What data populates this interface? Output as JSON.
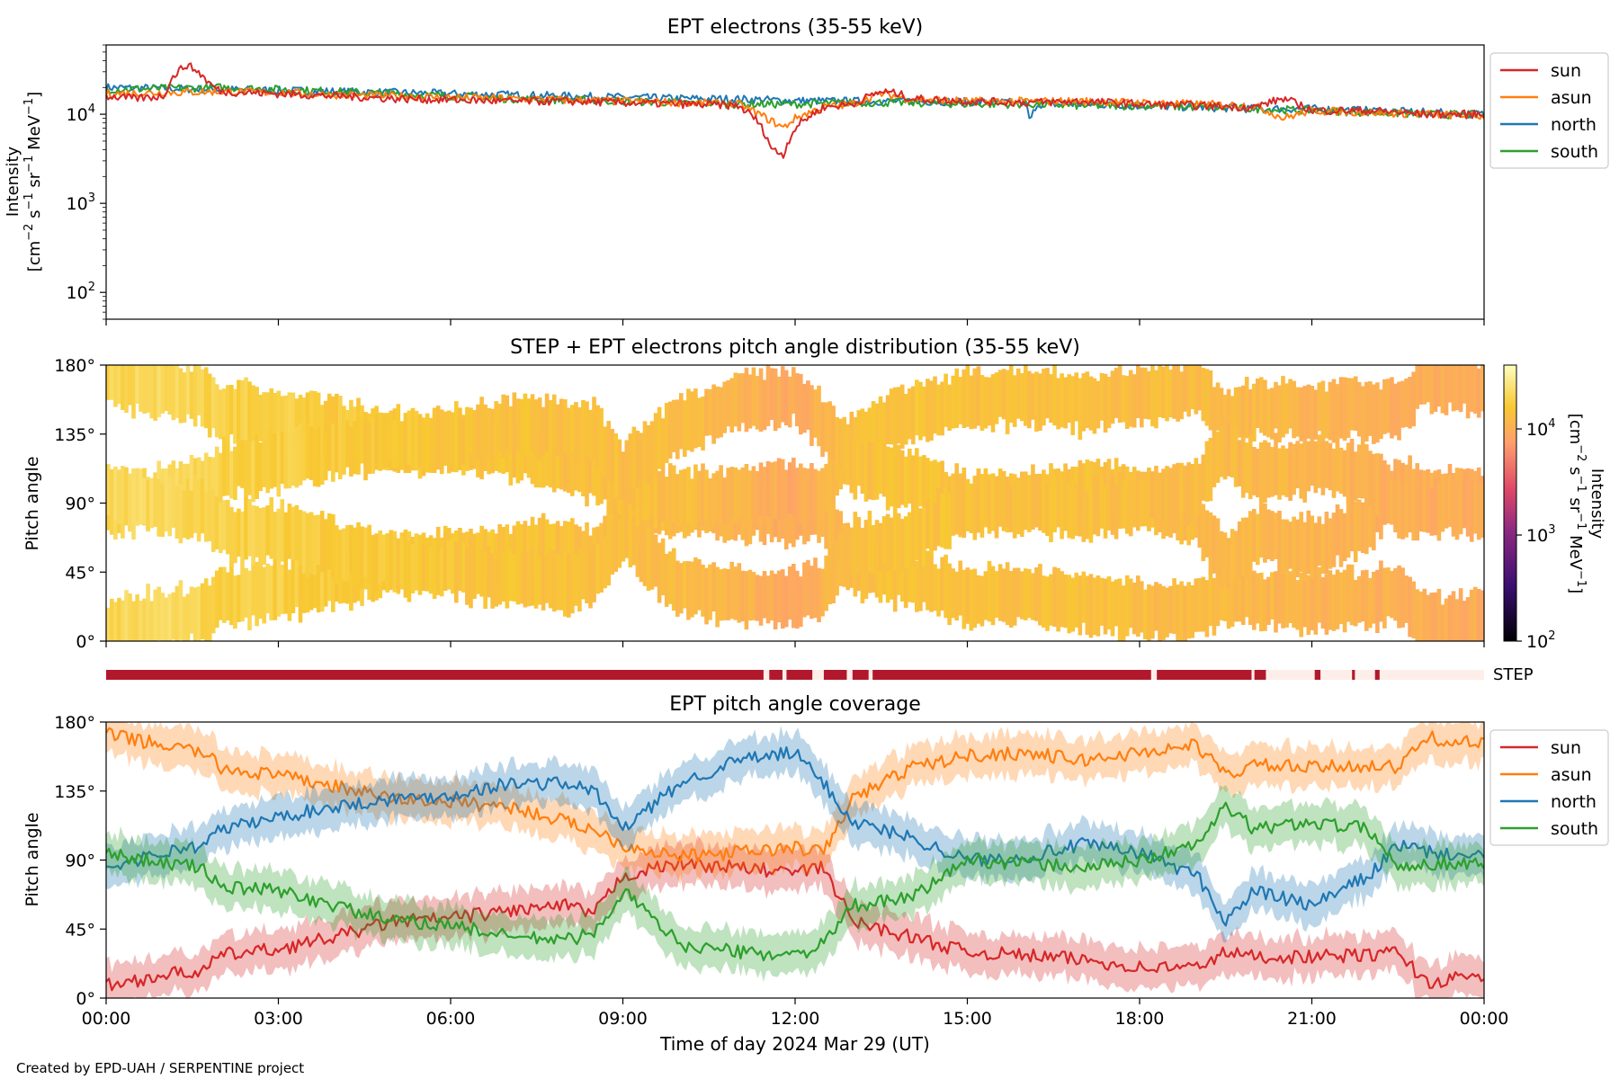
{
  "figure": {
    "credit": "Created by EPD-UAH / SERPENTINE project",
    "xlabel": "Time of day 2024 Mar 29 (UT)",
    "xticks": [
      "00:00",
      "03:00",
      "06:00",
      "09:00",
      "12:00",
      "15:00",
      "18:00",
      "21:00",
      "00:00"
    ]
  },
  "colors": {
    "sun": "#d62728",
    "asun": "#ff7f0e",
    "north": "#1f77b4",
    "south": "#2ca02c",
    "step_bar": "#b2182b",
    "step_gap": "#fdeee9"
  },
  "chart_data": [
    {
      "id": "intensity",
      "type": "line",
      "title": "EPT electrons (35-55 keV)",
      "ylabel": [
        "Intensity",
        "[cm",
        "−2",
        " s",
        "−1",
        " sr",
        "−1",
        " MeV",
        "−1",
        "]"
      ],
      "yscale": "log",
      "ylim": [
        50,
        60000
      ],
      "yticks": [
        {
          "base": "10",
          "exp": "2",
          "value": 100
        },
        {
          "base": "10",
          "exp": "3",
          "value": 1000
        },
        {
          "base": "10",
          "exp": "4",
          "value": 10000
        }
      ],
      "xlim_hours": [
        0,
        24
      ],
      "legend": [
        "sun",
        "asun",
        "north",
        "south"
      ],
      "legend_position": "upper-right-outside",
      "series": [
        {
          "name": "sun",
          "x": [
            0,
            0.5,
            1,
            1.2,
            1.4,
            1.6,
            1.8,
            2,
            3,
            4,
            5,
            6,
            7,
            8,
            9,
            10,
            11,
            11.3,
            11.6,
            11.8,
            12,
            12.2,
            12.5,
            13,
            13.5,
            13.8,
            14,
            15,
            16,
            17,
            18,
            19,
            20,
            20.5,
            21,
            22,
            23,
            24
          ],
          "y": [
            16000,
            15000,
            16000,
            28000,
            36000,
            30000,
            22000,
            18000,
            17000,
            16000,
            15000,
            14500,
            14000,
            14000,
            13500,
            13000,
            12500,
            9000,
            4000,
            3500,
            7000,
            9000,
            12000,
            13000,
            18000,
            17000,
            15000,
            14000,
            13500,
            14000,
            13000,
            12500,
            12000,
            15000,
            11000,
            11000,
            10000,
            10000
          ]
        },
        {
          "name": "asun",
          "x": [
            0,
            1,
            2,
            3,
            4,
            5,
            6,
            7,
            8,
            9,
            10,
            11,
            11.5,
            11.8,
            12,
            12.5,
            13,
            13.5,
            14,
            15,
            16,
            17,
            18,
            19,
            20,
            20.5,
            21,
            22,
            23,
            24
          ],
          "y": [
            17000,
            17500,
            18000,
            17500,
            16500,
            16000,
            15500,
            15000,
            14500,
            14000,
            13500,
            13000,
            9000,
            7000,
            9000,
            12000,
            13000,
            17000,
            15000,
            14000,
            14000,
            14000,
            13500,
            13000,
            12500,
            9000,
            11000,
            10500,
            10000,
            9500
          ]
        },
        {
          "name": "north",
          "x": [
            0,
            1,
            2,
            3,
            4,
            5,
            6,
            7,
            8,
            9,
            10,
            11,
            11.5,
            12,
            13,
            14,
            15,
            16,
            16.1,
            16.2,
            17,
            18,
            19,
            20,
            21,
            22,
            23,
            24
          ],
          "y": [
            20000,
            19500,
            19000,
            18500,
            18000,
            17500,
            17000,
            16500,
            16000,
            15500,
            15000,
            14800,
            14500,
            14200,
            14000,
            14000,
            13800,
            13500,
            8000,
            13000,
            13000,
            12500,
            12000,
            11500,
            11500,
            11000,
            10500,
            10000
          ]
        },
        {
          "name": "south",
          "x": [
            0,
            1,
            2,
            3,
            4,
            5,
            6,
            7,
            8,
            9,
            10,
            11,
            12,
            13,
            14,
            15,
            16,
            17,
            18,
            19,
            20,
            21,
            22,
            23,
            24
          ],
          "y": [
            19000,
            19500,
            20000,
            19000,
            18000,
            17000,
            16000,
            15000,
            14500,
            14000,
            13500,
            13000,
            13000,
            13500,
            13500,
            13000,
            13000,
            12500,
            12500,
            12000,
            11500,
            11000,
            10500,
            10000,
            9800
          ]
        }
      ]
    },
    {
      "id": "pad",
      "type": "heatmap",
      "title": "STEP + EPT electrons pitch angle distribution (35-55 keV)",
      "ylabel": "Pitch angle",
      "ylim": [
        0,
        180
      ],
      "yticks": [
        "0°",
        "45°",
        "90°",
        "135°",
        "180°"
      ],
      "colorbar": {
        "scale": "log",
        "range": [
          100,
          40000
        ],
        "ticks": [
          {
            "base": "10",
            "exp": "2",
            "value": 100
          },
          {
            "base": "10",
            "exp": "3",
            "value": 1000
          },
          {
            "base": "10",
            "exp": "4",
            "value": 10000
          }
        ],
        "label": [
          "Intensity",
          "[cm",
          "−2",
          " s",
          "−1",
          " sr",
          "−1",
          " MeV",
          "−1",
          "]"
        ]
      },
      "intensity_hours": [
        0,
        1,
        2,
        3,
        4,
        5,
        6,
        7,
        8,
        9,
        10,
        11,
        12,
        13,
        14,
        15,
        16,
        17,
        18,
        19,
        20,
        21,
        22,
        23,
        24
      ],
      "intensity_values": [
        20000,
        22000,
        19000,
        18000,
        16500,
        16000,
        15000,
        14500,
        14000,
        13500,
        13000,
        11000,
        9000,
        13000,
        15000,
        14000,
        13500,
        14000,
        13000,
        12500,
        12000,
        11000,
        10500,
        10000,
        9500
      ]
    },
    {
      "id": "step",
      "type": "bar",
      "label": "STEP",
      "gaps_hours": [
        [
          11.45,
          11.55
        ],
        [
          11.78,
          11.85
        ],
        [
          12.3,
          12.5
        ],
        [
          12.9,
          13.0
        ],
        [
          13.28,
          13.35
        ],
        [
          18.2,
          18.3
        ],
        [
          19.95,
          20.0
        ],
        [
          20.2,
          24.0
        ]
      ],
      "marks_hours": [
        [
          21.05,
          21.15
        ],
        [
          21.7,
          21.75
        ],
        [
          22.1,
          22.18
        ]
      ]
    },
    {
      "id": "coverage",
      "type": "line",
      "title": "EPT pitch angle coverage",
      "ylabel": "Pitch angle",
      "ylim": [
        0,
        180
      ],
      "yticks": [
        "0°",
        "45°",
        "90°",
        "135°",
        "180°"
      ],
      "band_halfwidth_deg": 13,
      "legend": [
        "sun",
        "asun",
        "north",
        "south"
      ],
      "legend_position": "upper-right-outside",
      "series": [
        {
          "name": "sun",
          "x": [
            0,
            1,
            1.7,
            2,
            3,
            4,
            5,
            6,
            7,
            8,
            8.5,
            9,
            10,
            11,
            12,
            12.5,
            13,
            14,
            15,
            16,
            17,
            18,
            19,
            19.5,
            20,
            21,
            22,
            22.5,
            23,
            24
          ],
          "y": [
            8,
            15,
            18,
            28,
            32,
            40,
            50,
            52,
            57,
            60,
            55,
            80,
            88,
            85,
            82,
            85,
            50,
            40,
            30,
            28,
            25,
            20,
            20,
            30,
            27,
            27,
            28,
            30,
            10,
            15
          ]
        },
        {
          "name": "asun",
          "x": [
            0,
            1,
            1.7,
            2,
            3,
            4,
            5,
            6,
            7,
            8,
            8.5,
            9,
            10,
            11,
            12,
            12.5,
            13,
            14,
            15,
            16,
            17,
            18,
            19,
            19.5,
            20,
            21,
            22,
            22.5,
            23,
            24
          ],
          "y": [
            172,
            165,
            160,
            150,
            145,
            138,
            130,
            128,
            125,
            115,
            110,
            100,
            92,
            95,
            98,
            95,
            130,
            150,
            158,
            160,
            155,
            160,
            165,
            145,
            152,
            150,
            152,
            150,
            170,
            165
          ]
        },
        {
          "name": "north",
          "x": [
            0,
            1,
            1.7,
            2,
            3,
            4,
            5,
            6,
            7,
            8,
            8.5,
            9,
            10,
            11,
            12,
            12.5,
            13,
            14,
            15,
            16,
            17,
            18,
            19,
            19.5,
            20,
            21,
            22,
            22.5,
            23,
            24
          ],
          "y": [
            85,
            95,
            100,
            110,
            118,
            125,
            130,
            132,
            140,
            140,
            135,
            110,
            140,
            155,
            160,
            140,
            115,
            105,
            90,
            92,
            100,
            95,
            80,
            50,
            70,
            60,
            80,
            100,
            95,
            92
          ]
        },
        {
          "name": "south",
          "x": [
            0,
            1,
            1.7,
            2,
            3,
            4,
            5,
            6,
            7,
            8,
            8.5,
            9,
            10,
            11,
            12,
            12.5,
            13,
            14,
            15,
            16,
            17,
            18,
            19,
            19.5,
            20,
            21,
            22,
            22.5,
            23,
            24
          ],
          "y": [
            95,
            88,
            85,
            72,
            70,
            60,
            50,
            48,
            40,
            38,
            42,
            70,
            35,
            30,
            28,
            35,
            60,
            65,
            90,
            88,
            85,
            90,
            100,
            125,
            110,
            115,
            110,
            85,
            88,
            88
          ]
        }
      ]
    }
  ]
}
